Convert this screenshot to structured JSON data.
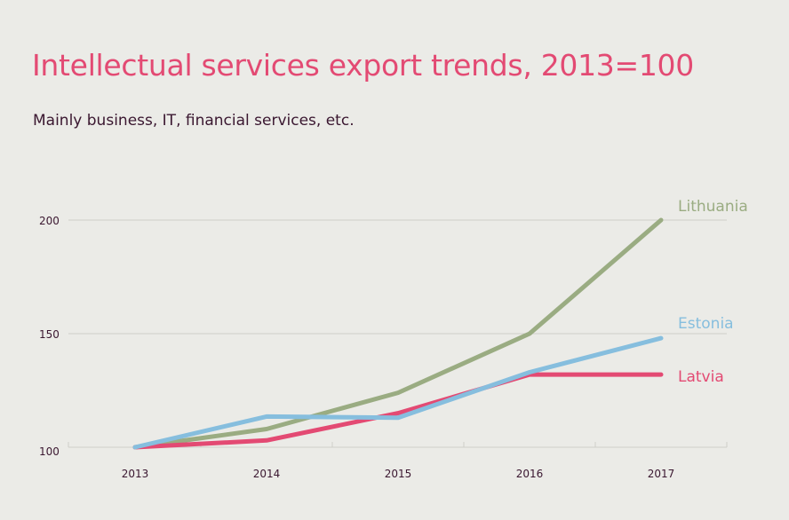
{
  "chart_data": {
    "type": "line",
    "title": "Intellectual services export trends, 2013=100",
    "subtitle": "Mainly business, IT, financial services, etc.",
    "x": [
      "2013",
      "2014",
      "2015",
      "2016",
      "2017"
    ],
    "y_ticks": [
      "100",
      "150",
      "200"
    ],
    "ylim": [
      100,
      200
    ],
    "grid": true,
    "legend": "inline labels at line ends",
    "series": [
      {
        "name": "Lithuania",
        "color": "#9aac82",
        "values": [
          100,
          108,
          124,
          150,
          200
        ]
      },
      {
        "name": "Latvia",
        "color": "#e34a73",
        "values": [
          100,
          103,
          115,
          132,
          132
        ]
      },
      {
        "name": "Estonia",
        "color": "#86bede",
        "values": [
          100,
          113.5,
          113,
          133,
          148
        ]
      }
    ]
  },
  "colors": {
    "background": "#ebebe7",
    "title": "#e34a73",
    "text": "#3a1730",
    "grid": "#cfcfc9"
  }
}
